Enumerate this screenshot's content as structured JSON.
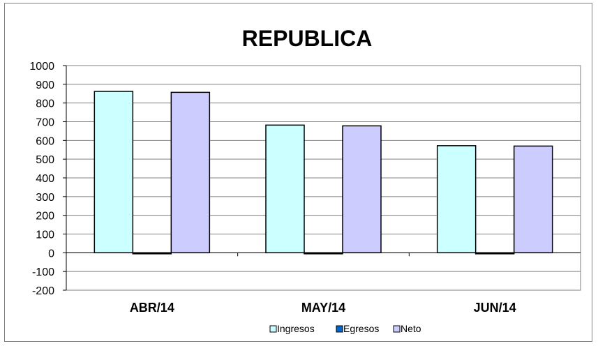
{
  "chart_data": {
    "type": "bar",
    "title": "REPUBLICA",
    "categories": [
      "ABR/14",
      "MAY/14",
      "JUN/14"
    ],
    "series": [
      {
        "name": "Ingresos",
        "values": [
          862,
          682,
          572
        ],
        "color": "#CCFFFF"
      },
      {
        "name": "Egresos",
        "values": [
          -5,
          -3,
          -3
        ],
        "color": "#0066CC"
      },
      {
        "name": "Neto",
        "values": [
          857,
          678,
          570
        ],
        "color": "#CCCCFF"
      }
    ],
    "ylim": [
      -200,
      1000
    ],
    "yticks": [
      "-200",
      "-100",
      "0",
      "100",
      "200",
      "300",
      "400",
      "500",
      "600",
      "700",
      "800",
      "900",
      "1000"
    ],
    "grid": true,
    "legend_position": "bottom"
  }
}
